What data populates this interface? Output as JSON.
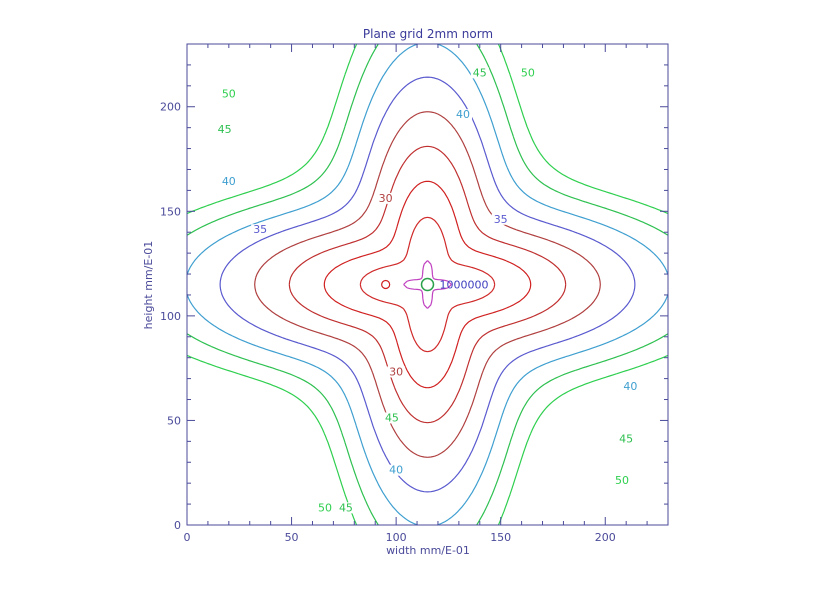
{
  "chart_data": {
    "type": "contour",
    "title": "Plane grid 2mm norm",
    "xlabel": "width mm/E-01",
    "ylabel": "height mm/E-01",
    "xlim": [
      0,
      230
    ],
    "ylim": [
      0,
      230
    ],
    "xticks": [
      0,
      50,
      100,
      150,
      200
    ],
    "yticks": [
      0,
      50,
      100,
      150,
      200
    ],
    "center": [
      115,
      115
    ],
    "center_label": "1000000",
    "grid": false,
    "legend": "none",
    "levels": [
      {
        "value": 50,
        "label": "50",
        "color": "#2fcf4f"
      },
      {
        "value": 45,
        "label": "45",
        "color": "#2ec050"
      },
      {
        "value": 40,
        "label": "40",
        "color": "#3f9fd0"
      },
      {
        "value": 35,
        "label": "35",
        "color": "#5a5acf"
      },
      {
        "value": 30,
        "label": "30",
        "color": "#b04040"
      },
      {
        "value": 25,
        "label": "",
        "color": "#c03030"
      },
      {
        "value": 20,
        "label": "",
        "color": "#d02020"
      },
      {
        "value": 15,
        "label": "",
        "color": "#d02a2a"
      },
      {
        "value": 10,
        "label": "",
        "color": "#c040c0"
      }
    ],
    "level_labels": [
      {
        "text": "50",
        "x": 20,
        "y": 205,
        "color": "#2fcf4f"
      },
      {
        "text": "45",
        "x": 18,
        "y": 188,
        "color": "#2ec050"
      },
      {
        "text": "40",
        "x": 20,
        "y": 163,
        "color": "#3f9fd0"
      },
      {
        "text": "35",
        "x": 35,
        "y": 140,
        "color": "#5a5acf"
      },
      {
        "text": "45",
        "x": 140,
        "y": 215,
        "color": "#2ec050"
      },
      {
        "text": "50",
        "x": 163,
        "y": 215,
        "color": "#2fcf4f"
      },
      {
        "text": "40",
        "x": 132,
        "y": 195,
        "color": "#3f9fd0"
      },
      {
        "text": "35",
        "x": 150,
        "y": 145,
        "color": "#5a5acf"
      },
      {
        "text": "30",
        "x": 95,
        "y": 155,
        "color": "#b04040"
      },
      {
        "text": "40",
        "x": 212,
        "y": 65,
        "color": "#3f9fd0"
      },
      {
        "text": "45",
        "x": 210,
        "y": 40,
        "color": "#2ec050"
      },
      {
        "text": "50",
        "x": 208,
        "y": 20,
        "color": "#2fcf4f"
      },
      {
        "text": "45",
        "x": 98,
        "y": 50,
        "color": "#2ec050"
      },
      {
        "text": "40",
        "x": 100,
        "y": 25,
        "color": "#3f9fd0"
      },
      {
        "text": "45",
        "x": 76,
        "y": 7,
        "color": "#2ec050"
      },
      {
        "text": "50",
        "x": 66,
        "y": 7,
        "color": "#2fcf4f"
      },
      {
        "text": "30",
        "x": 100,
        "y": 72,
        "color": "#b04040"
      }
    ]
  }
}
